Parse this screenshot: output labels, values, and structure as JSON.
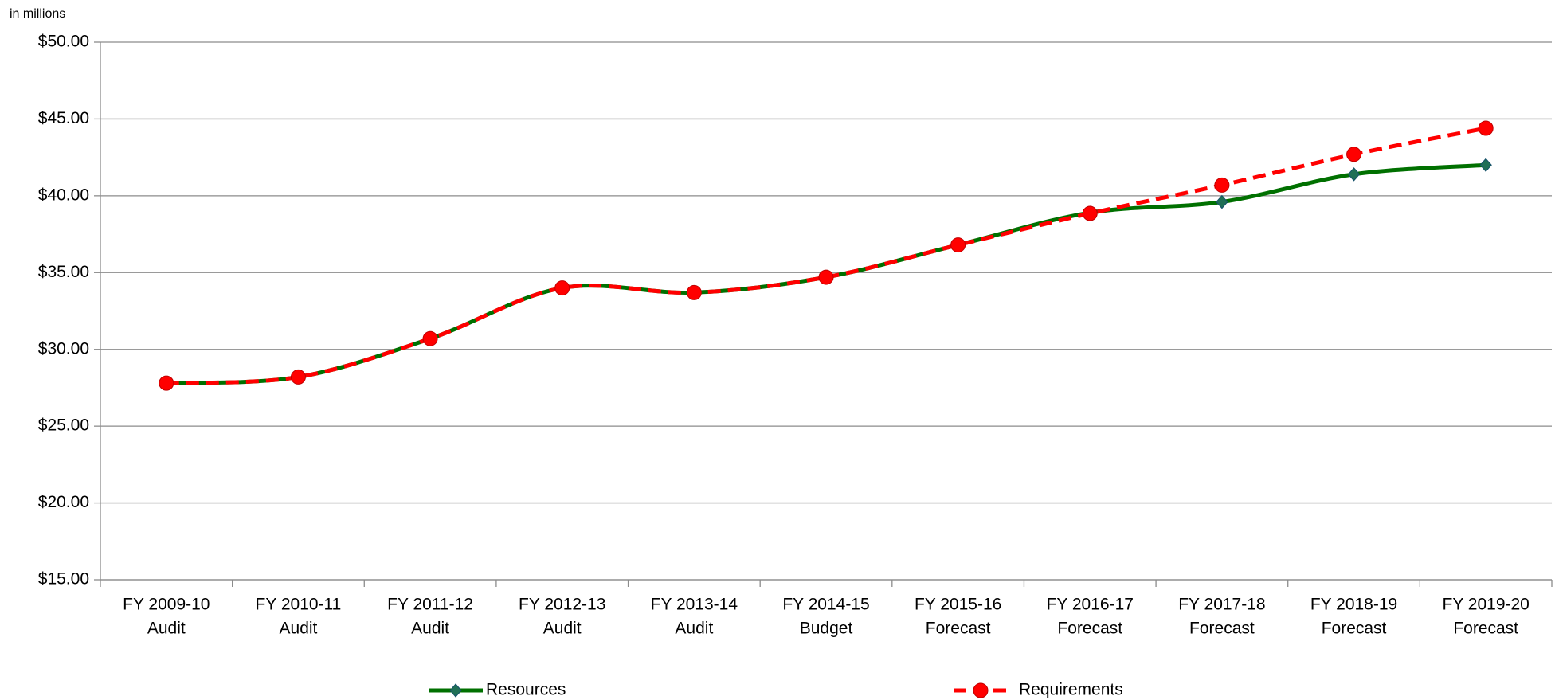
{
  "chart_data": {
    "type": "line",
    "y_axis_label": "in millions",
    "categories": [
      [
        "FY 2009-10",
        "Audit"
      ],
      [
        "FY 2010-11",
        "Audit"
      ],
      [
        "FY 2011-12",
        "Audit"
      ],
      [
        "FY 2012-13",
        "Audit"
      ],
      [
        "FY 2013-14",
        "Audit"
      ],
      [
        "FY 2014-15",
        "Budget"
      ],
      [
        "FY 2015-16",
        "Forecast"
      ],
      [
        "FY 2016-17",
        "Forecast"
      ],
      [
        "FY 2017-18",
        "Forecast"
      ],
      [
        "FY 2018-19",
        "Forecast"
      ],
      [
        "FY 2019-20",
        "Forecast"
      ]
    ],
    "series": [
      {
        "name": "Resources",
        "color": "#007000",
        "marker": "diamond",
        "values": [
          27.8,
          28.2,
          30.7,
          34.0,
          33.7,
          34.7,
          36.8,
          38.9,
          39.6,
          41.4,
          42.0
        ]
      },
      {
        "name": "Requirements",
        "color": "#ff0000",
        "marker": "circle",
        "dashed": true,
        "values": [
          27.8,
          28.2,
          30.7,
          34.0,
          33.7,
          34.7,
          36.8,
          38.85,
          40.7,
          42.7,
          44.4
        ]
      }
    ],
    "ylim": [
      15,
      50
    ],
    "yticks": [
      {
        "value": 15,
        "label": "$15.00"
      },
      {
        "value": 20,
        "label": "$20.00"
      },
      {
        "value": 25,
        "label": "$25.00"
      },
      {
        "value": 30,
        "label": "$30.00"
      },
      {
        "value": 35,
        "label": "$35.00"
      },
      {
        "value": 40,
        "label": "$40.00"
      },
      {
        "value": 45,
        "label": "$45.00"
      },
      {
        "value": 50,
        "label": "$50.00"
      }
    ],
    "grid": true,
    "legend": "bottom",
    "smooth": true
  }
}
